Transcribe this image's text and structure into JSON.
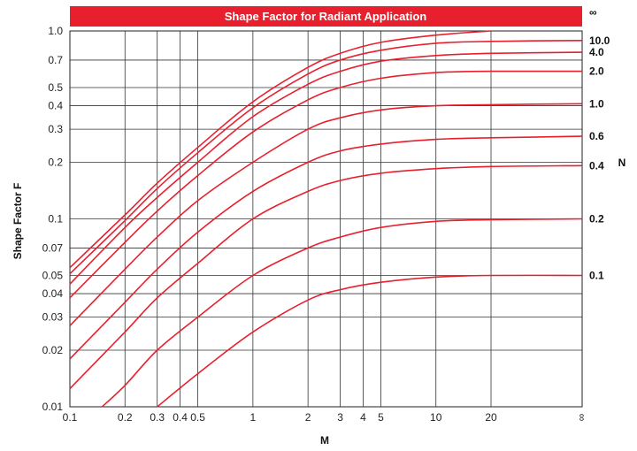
{
  "chart_data": {
    "type": "line",
    "title": "Shape Factor for Radiant Application",
    "xlabel": "M",
    "ylabel": "Shape Factor F",
    "legend_title": "N",
    "x_scale": "log",
    "y_scale": "log",
    "xlim": [
      0.1,
      "∞"
    ],
    "ylim": [
      0.01,
      1.0
    ],
    "grid": true,
    "line_color": "#e8202e",
    "title_bar_color": "#e8202e",
    "x_ticks": [
      "0.1",
      "0.2",
      "0.3",
      "0.4",
      "0.5",
      "1",
      "2",
      "3",
      "4",
      "5",
      "10",
      "20",
      "∞"
    ],
    "y_ticks": [
      "0.01",
      "0.02",
      "0.03",
      "0.04",
      "0.05",
      "0.07",
      "0.1",
      "0.2",
      "0.3",
      "0.4",
      "0.5",
      "0.7",
      "1.0"
    ],
    "series": [
      {
        "name": "∞",
        "x": [
          0.1,
          0.2,
          0.3,
          0.5,
          1,
          2,
          3,
          5,
          10,
          20
        ],
        "y": [
          0.055,
          0.105,
          0.155,
          0.24,
          0.42,
          0.64,
          0.76,
          0.87,
          0.95,
          1.0
        ]
      },
      {
        "name": "10.0",
        "x": [
          0.1,
          0.2,
          0.3,
          0.5,
          1,
          2,
          3,
          5,
          10,
          20,
          "∞"
        ],
        "y": [
          0.051,
          0.098,
          0.145,
          0.225,
          0.39,
          0.59,
          0.7,
          0.79,
          0.86,
          0.88,
          0.89
        ]
      },
      {
        "name": "4.0",
        "x": [
          0.1,
          0.2,
          0.3,
          0.5,
          1,
          2,
          3,
          5,
          10,
          20,
          "∞"
        ],
        "y": [
          0.045,
          0.09,
          0.13,
          0.2,
          0.35,
          0.52,
          0.61,
          0.69,
          0.74,
          0.76,
          0.77
        ]
      },
      {
        "name": "2.0",
        "x": [
          0.1,
          0.2,
          0.3,
          0.5,
          1,
          2,
          3,
          5,
          10,
          20,
          "∞"
        ],
        "y": [
          0.038,
          0.075,
          0.11,
          0.17,
          0.29,
          0.43,
          0.5,
          0.56,
          0.6,
          0.61,
          0.61
        ]
      },
      {
        "name": "1.0",
        "x": [
          0.1,
          0.2,
          0.3,
          0.5,
          1,
          2,
          3,
          5,
          10,
          20,
          "∞"
        ],
        "y": [
          0.027,
          0.054,
          0.08,
          0.125,
          0.2,
          0.3,
          0.345,
          0.38,
          0.4,
          0.405,
          0.41
        ]
      },
      {
        "name": "0.6",
        "x": [
          0.1,
          0.2,
          0.3,
          0.5,
          1,
          2,
          3,
          5,
          10,
          20,
          "∞"
        ],
        "y": [
          0.018,
          0.036,
          0.054,
          0.085,
          0.14,
          0.2,
          0.23,
          0.25,
          0.265,
          0.27,
          0.275
        ]
      },
      {
        "name": "0.4",
        "x": [
          0.1,
          0.2,
          0.3,
          0.5,
          1,
          2,
          3,
          5,
          10,
          20,
          "∞"
        ],
        "y": [
          0.0125,
          0.025,
          0.038,
          0.058,
          0.1,
          0.14,
          0.16,
          0.175,
          0.185,
          0.19,
          0.192
        ]
      },
      {
        "name": "0.2",
        "x": [
          0.15,
          0.2,
          0.3,
          0.5,
          1,
          2,
          3,
          5,
          10,
          20,
          "∞"
        ],
        "y": [
          0.01,
          0.013,
          0.02,
          0.03,
          0.05,
          0.07,
          0.08,
          0.09,
          0.097,
          0.099,
          0.1
        ]
      },
      {
        "name": "0.1",
        "x": [
          0.3,
          0.5,
          1,
          2,
          3,
          5,
          10,
          20,
          "∞"
        ],
        "y": [
          0.01,
          0.015,
          0.025,
          0.037,
          0.042,
          0.046,
          0.049,
          0.05,
          0.05
        ]
      }
    ]
  }
}
